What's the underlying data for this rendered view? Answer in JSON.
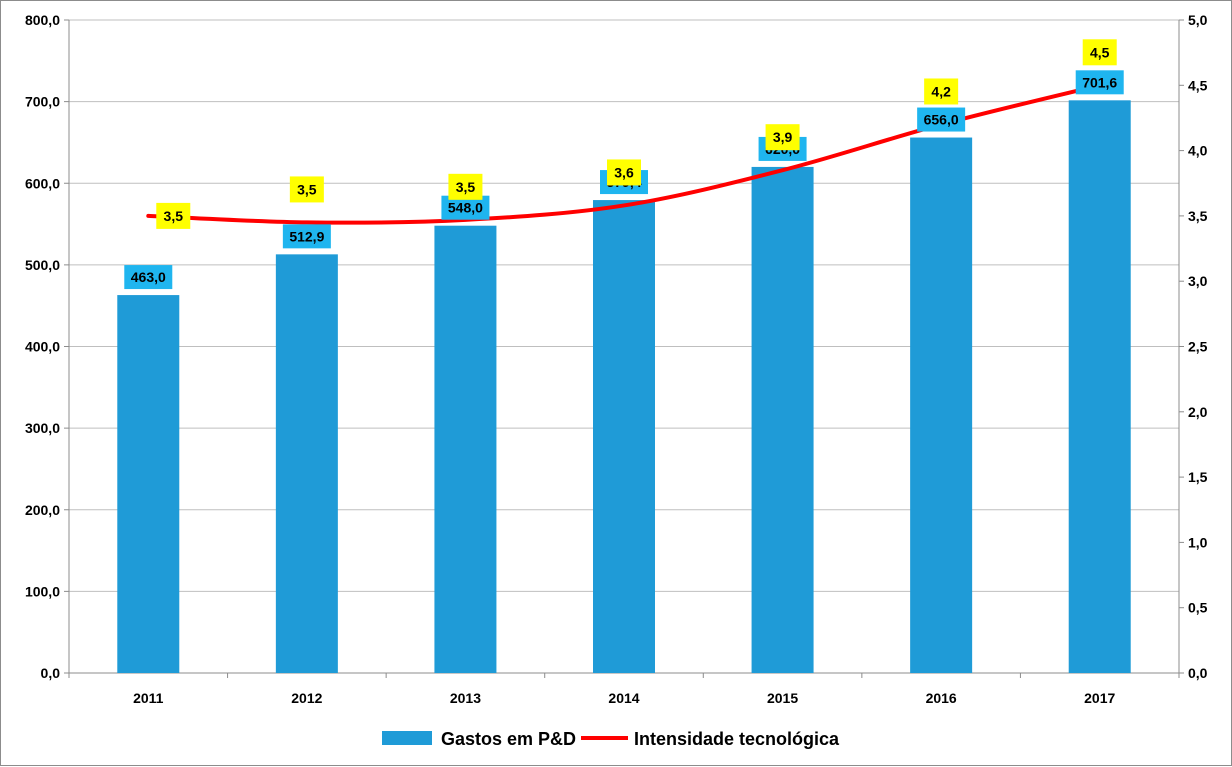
{
  "chart_data": {
    "type": "bar",
    "categories": [
      "2011",
      "2012",
      "2013",
      "2014",
      "2015",
      "2016",
      "2017"
    ],
    "series": [
      {
        "name": "Gastos em P&D",
        "type": "bar",
        "axis": "left",
        "color": "#1f9bd7",
        "values": [
          463.0,
          512.9,
          548.0,
          579.4,
          620.0,
          656.0,
          701.6
        ],
        "labels": [
          "463,0",
          "512,9",
          "548,0",
          "579,4",
          "620,0",
          "656,0",
          "701,6"
        ],
        "label_color": "#1fb5ef"
      },
      {
        "name": "Intensidade tecnológica",
        "type": "line",
        "axis": "right",
        "color": "#ff0000",
        "values": [
          3.5,
          3.45,
          3.47,
          3.58,
          3.85,
          4.2,
          4.5
        ],
        "labels": [
          "3,5",
          "3,5",
          "3,5",
          "3,6",
          "3,9",
          "4,2",
          "4,5"
        ],
        "label_color": "#ffff00"
      }
    ],
    "y_left": {
      "ylim": [
        0,
        800
      ],
      "ticks": [
        "0,0",
        "100,0",
        "200,0",
        "300,0",
        "400,0",
        "500,0",
        "600,0",
        "700,0",
        "800,0"
      ]
    },
    "y_right": {
      "ylim": [
        0,
        5
      ],
      "ticks": [
        "0,0",
        "0,5",
        "1,0",
        "1,5",
        "2,0",
        "2,5",
        "3,0",
        "3,5",
        "4,0",
        "4,5",
        "5,0"
      ]
    },
    "grid": true,
    "legend": "bottom"
  }
}
